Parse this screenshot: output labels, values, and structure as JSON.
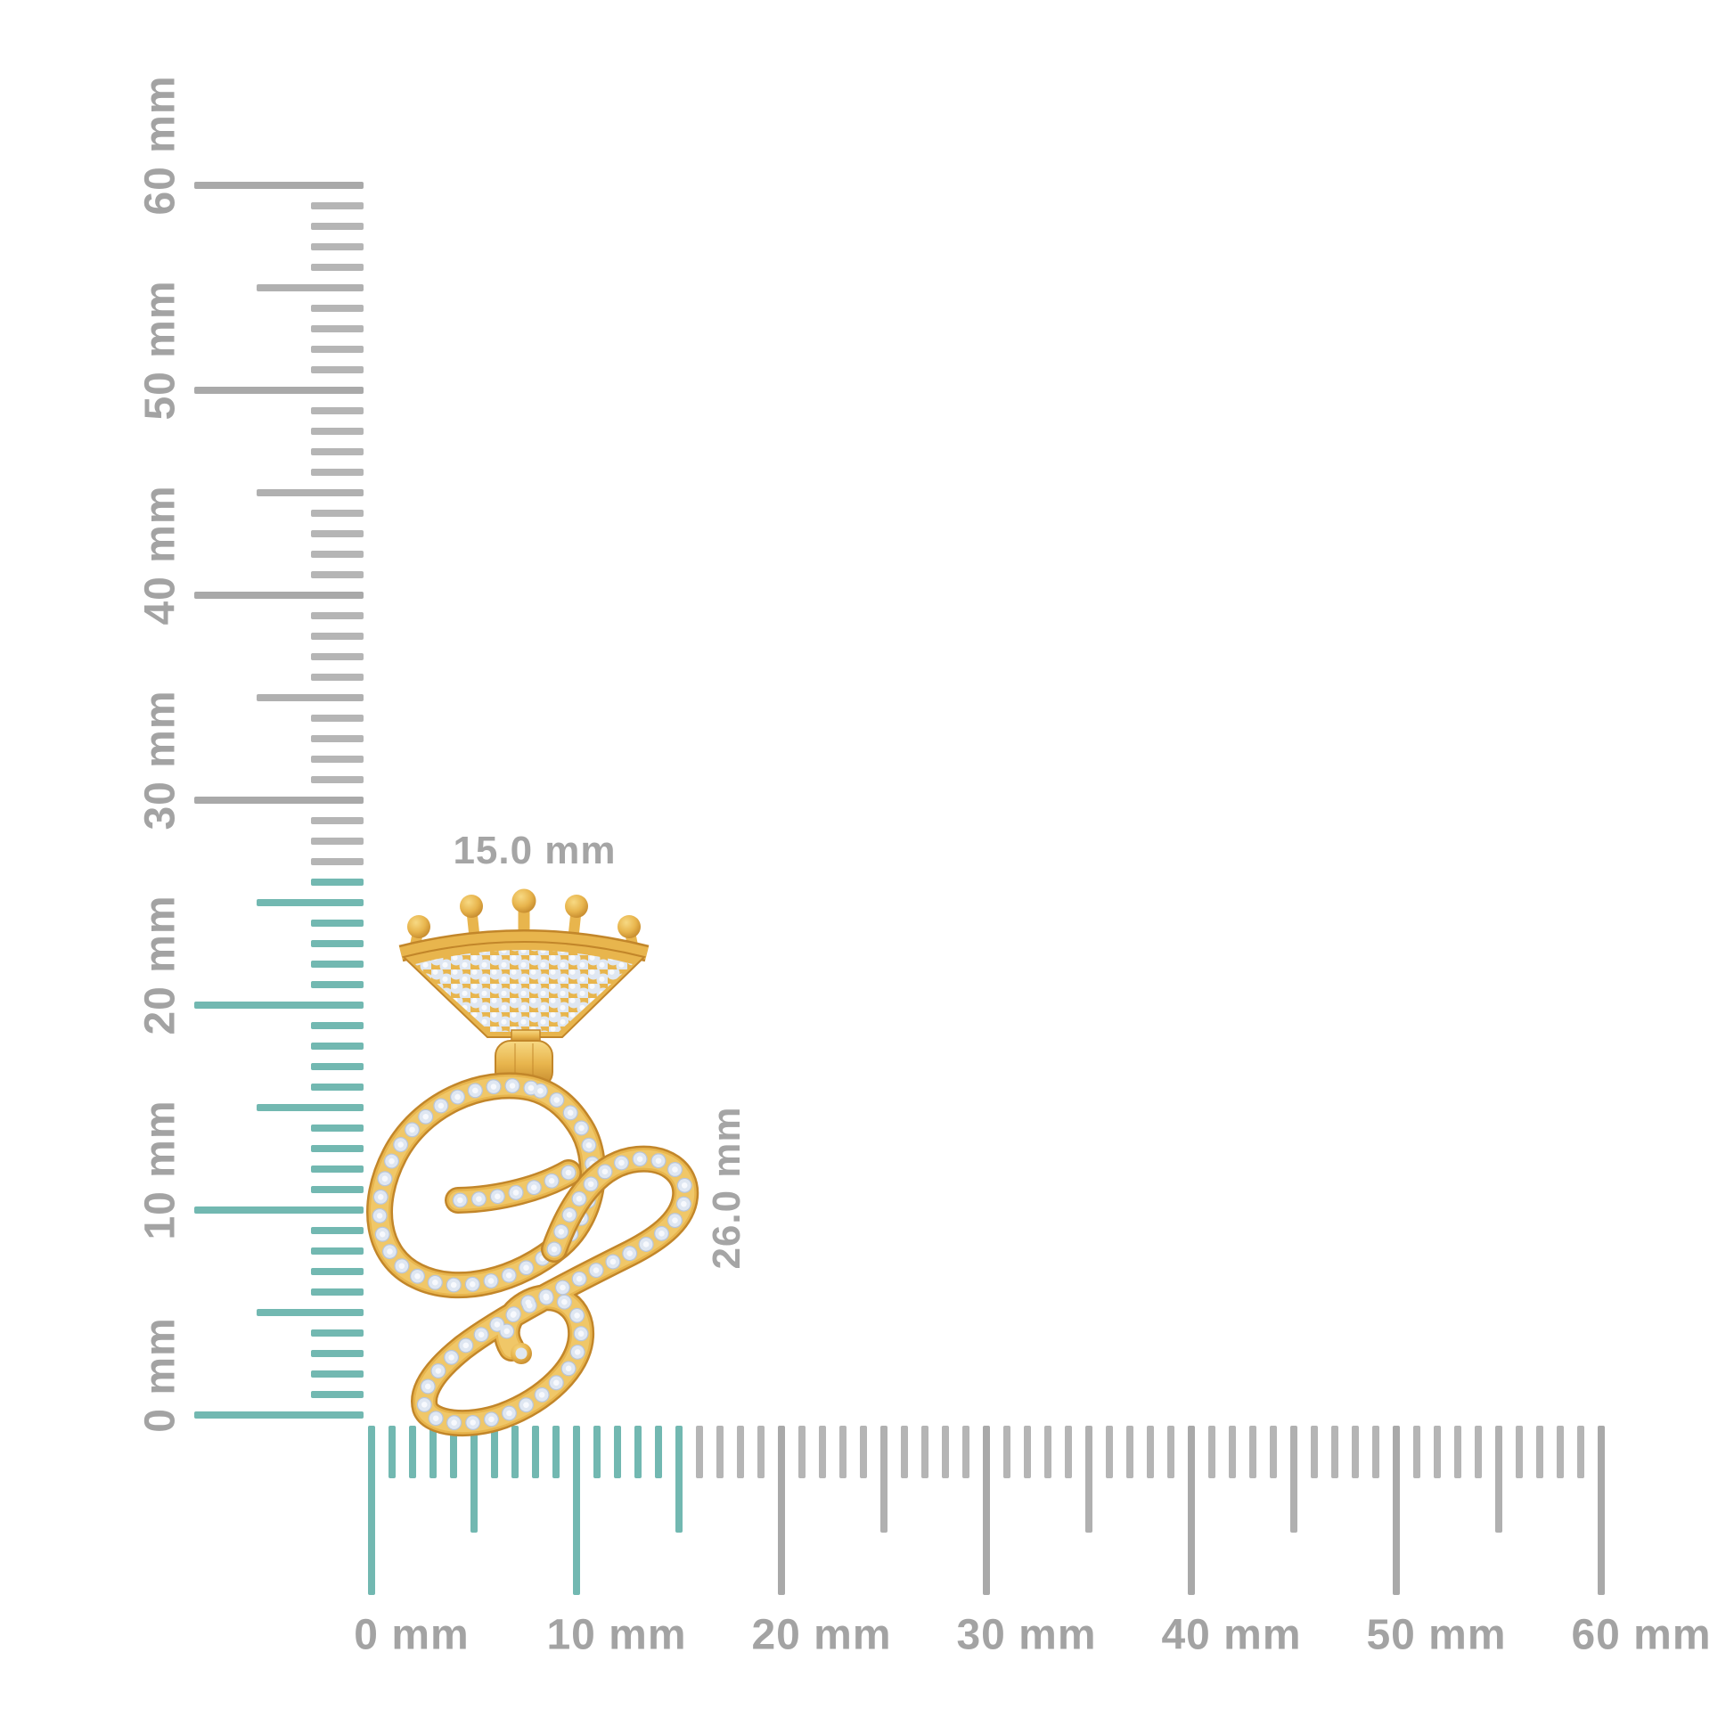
{
  "rulers": {
    "vertical": {
      "max_mm": 60,
      "minor_step_mm": 1,
      "medium_step_mm": 5,
      "major_step_mm": 10,
      "highlight_to_mm": 26,
      "major_labels": [
        "0 mm",
        "10 mm",
        "20 mm",
        "30 mm",
        "40 mm",
        "50 mm",
        "60 mm"
      ]
    },
    "horizontal": {
      "max_mm": 60,
      "minor_step_mm": 1,
      "medium_step_mm": 5,
      "major_step_mm": 10,
      "highlight_to_mm": 15,
      "major_labels": [
        "0 mm",
        "10 mm",
        "20 mm",
        "30 mm",
        "40 mm",
        "50 mm",
        "60 mm"
      ]
    }
  },
  "colors": {
    "background": "#ffffff",
    "highlight_teal": "#72b8b1",
    "tick_minor_gray": "#b5b5b5",
    "tick_medium_gray": "#b0b0b0",
    "tick_major_gray": "#a9a9a9",
    "ruler_label_gray": "#a3a3a3",
    "dimension_label_gray": "#a5a5a5"
  },
  "dimension_labels": {
    "width": "15.0 mm",
    "height": "26.0 mm"
  },
  "pendant": {
    "kind": "crown-script-initial-C-diamond-pendant",
    "colors": {
      "gold": "#e8b54d",
      "gold_light": "#f7d983",
      "gold_dark": "#c2862a",
      "diamond": "#dfe7f2",
      "diamond_highlight": "#f8fafd",
      "diamond_shadow": "#b9c5d8"
    }
  }
}
